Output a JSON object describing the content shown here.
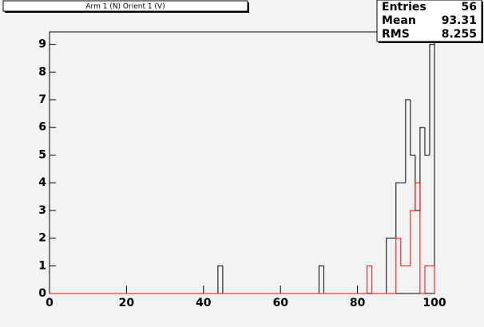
{
  "chart_data": {
    "type": "histogram",
    "title": "Arm 1 (N) Orient 1 (V)",
    "bins": [
      0,
      1.25,
      2.5,
      3.75,
      5,
      6.25,
      7.5,
      8.75,
      10,
      11.25,
      12.5,
      13.75,
      15,
      16.25,
      17.5,
      18.75,
      20,
      21.25,
      22.5,
      23.75,
      25,
      26.25,
      27.5,
      28.75,
      30,
      31.25,
      32.5,
      33.75,
      35,
      36.25,
      37.5,
      38.75,
      40,
      41.25,
      42.5,
      43.75,
      45,
      46.25,
      47.5,
      48.75,
      50,
      51.25,
      52.5,
      53.75,
      55,
      56.25,
      57.5,
      58.75,
      60,
      61.25,
      62.5,
      63.75,
      65,
      66.25,
      67.5,
      68.75,
      70,
      71.25,
      72.5,
      73.75,
      75,
      76.25,
      77.5,
      78.75,
      80,
      81.25,
      82.5,
      83.75,
      85,
      86.25,
      87.5,
      88.75,
      90,
      91.25,
      92.5,
      93.75,
      95,
      96.25,
      97.5,
      98.75,
      100
    ],
    "series": [
      {
        "color": "#000000",
        "values": [
          0,
          0,
          0,
          0,
          0,
          0,
          0,
          0,
          0,
          0,
          0,
          0,
          0,
          0,
          0,
          0,
          0,
          0,
          0,
          0,
          0,
          0,
          0,
          0,
          0,
          0,
          0,
          0,
          0,
          0,
          0,
          0,
          0,
          0,
          0,
          1,
          0,
          0,
          0,
          0,
          0,
          0,
          0,
          0,
          0,
          0,
          0,
          0,
          0,
          0,
          0,
          0,
          0,
          0,
          0,
          0,
          1,
          0,
          0,
          0,
          0,
          0,
          0,
          0,
          0,
          0,
          0,
          0,
          0,
          0,
          2,
          2,
          4,
          4,
          7,
          5,
          3,
          6,
          5,
          9
        ]
      },
      {
        "color": "#ff0000",
        "values": [
          0,
          0,
          0,
          0,
          0,
          0,
          0,
          0,
          0,
          0,
          0,
          0,
          0,
          0,
          0,
          0,
          0,
          0,
          0,
          0,
          0,
          0,
          0,
          0,
          0,
          0,
          0,
          0,
          0,
          0,
          0,
          0,
          0,
          0,
          0,
          0,
          0,
          0,
          0,
          0,
          0,
          0,
          0,
          0,
          0,
          0,
          0,
          0,
          0,
          0,
          0,
          0,
          0,
          0,
          0,
          0,
          0,
          0,
          0,
          0,
          0,
          0,
          0,
          0,
          0,
          0,
          1,
          0,
          0,
          0,
          0,
          0,
          2,
          1,
          1,
          3,
          4,
          0,
          1,
          1
        ]
      }
    ],
    "xlim": [
      0,
      100
    ],
    "xticks": [
      0,
      20,
      40,
      60,
      80,
      100
    ],
    "ylim": [
      0,
      9.45
    ],
    "yticks": [
      0,
      1,
      2,
      3,
      4,
      5,
      6,
      7,
      8,
      9
    ],
    "stats": [
      {
        "label": "Entries",
        "value": 56
      },
      {
        "label": "Mean",
        "value": 93.31
      },
      {
        "label": "RMS",
        "value": 8.255
      }
    ]
  }
}
